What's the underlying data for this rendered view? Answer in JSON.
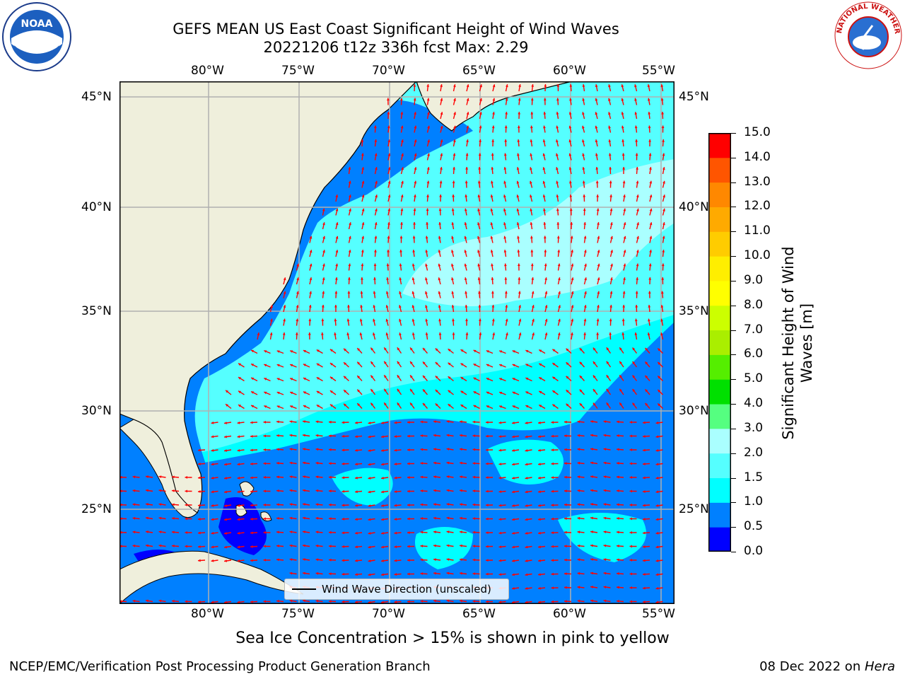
{
  "title": {
    "line1": "GEFS MEAN US East Coast Significant Height of Wind Waves",
    "line2": "20221206 t12z 336h fcst   Max: 2.29"
  },
  "map": {
    "lon_ticks": [
      "80°W",
      "75°W",
      "70°W",
      "65°W",
      "60°W",
      "55°W"
    ],
    "lat_ticks": [
      "45°N",
      "40°N",
      "35°N",
      "30°N",
      "25°N"
    ],
    "extent": {
      "lon": [
        -85,
        -54.3
      ],
      "lat": [
        20.5,
        46
      ]
    },
    "land_color": "#efefdc",
    "legend_label": "Wind Wave Direction (unscaled)",
    "arrow_color": "#ff0000"
  },
  "colorbar": {
    "label": "Significant Height of Wind Waves [m]",
    "ticks": [
      "0.0",
      "0.5",
      "1.0",
      "1.5",
      "2.0",
      "3.0",
      "4.0",
      "5.0",
      "6.0",
      "7.0",
      "8.0",
      "9.0",
      "10.0",
      "11.0",
      "12.0",
      "13.0",
      "14.0",
      "15.0"
    ],
    "colors": [
      "#0000ff",
      "#0080ff",
      "#00ffff",
      "#55ffff",
      "#aaffff",
      "#55ff80",
      "#00e000",
      "#55ee00",
      "#aaee00",
      "#ccff00",
      "#ffff00",
      "#ffee00",
      "#ffcc00",
      "#ffaa00",
      "#ff8800",
      "#ff5500",
      "#ff0000"
    ]
  },
  "caption": "Sea Ice Concentration > 15% is shown in pink to yellow",
  "footer": {
    "left": "NCEP/EMC/Verification Post Processing Product Generation Branch",
    "date": "08 Dec 2022 on ",
    "machine": "Hera"
  },
  "logos": {
    "noaa": "NOAA",
    "nws_text": "NATIONAL WEATHER SERVICE"
  }
}
